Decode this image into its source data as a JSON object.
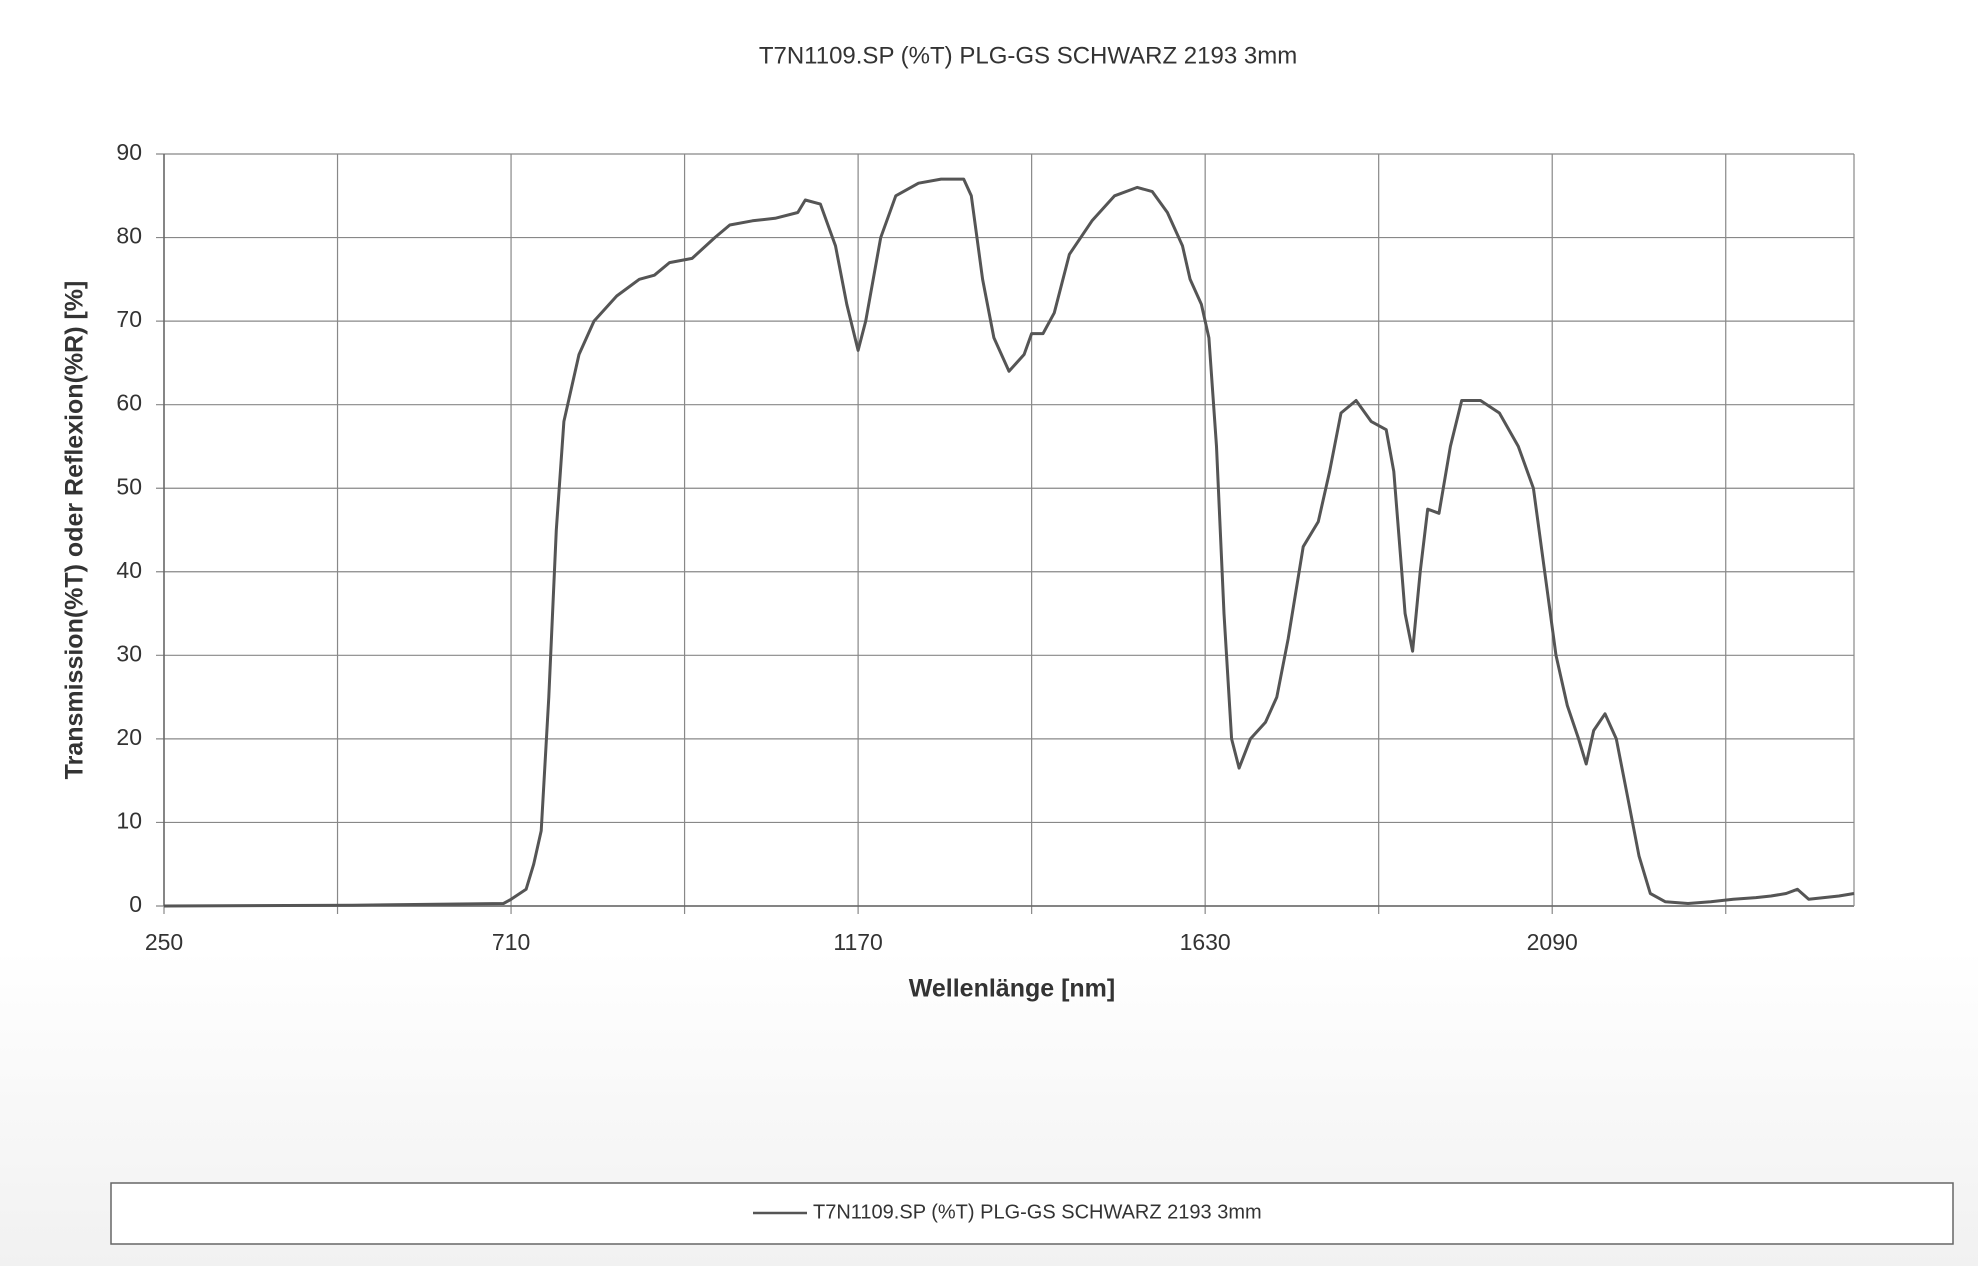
{
  "chart_data": {
    "type": "line",
    "title": "T7N1109.SP (%T) PLG-GS SCHWARZ 2193  3mm",
    "x_label": "Wellenlänge [nm]",
    "y_label": "Transmission(%T)  oder  Reflexion(%R) [%]",
    "xlim": [
      250,
      2490
    ],
    "xticks": [
      250,
      710,
      1170,
      1630,
      2090
    ],
    "xgrid": [
      480,
      940,
      1400,
      1860,
      2320
    ],
    "ylim": [
      0,
      90
    ],
    "yticks": [
      0,
      10,
      20,
      30,
      40,
      50,
      60,
      70,
      80,
      90
    ],
    "grid": true,
    "legend": "bottom",
    "x": [
      250,
      500,
      700,
      710,
      730,
      740,
      750,
      760,
      770,
      780,
      800,
      820,
      850,
      880,
      900,
      920,
      950,
      980,
      1000,
      1030,
      1060,
      1090,
      1100,
      1120,
      1140,
      1155,
      1170,
      1180,
      1200,
      1220,
      1250,
      1280,
      1310,
      1320,
      1335,
      1350,
      1370,
      1390,
      1400,
      1415,
      1430,
      1450,
      1480,
      1510,
      1540,
      1560,
      1580,
      1600,
      1610,
      1625,
      1635,
      1645,
      1655,
      1665,
      1675,
      1690,
      1710,
      1725,
      1740,
      1760,
      1780,
      1795,
      1810,
      1830,
      1850,
      1870,
      1880,
      1895,
      1905,
      1915,
      1925,
      1940,
      1955,
      1970,
      1995,
      2020,
      2045,
      2065,
      2080,
      2095,
      2110,
      2125,
      2135,
      2145,
      2160,
      2175,
      2190,
      2205,
      2220,
      2240,
      2270,
      2300,
      2330,
      2360,
      2380,
      2400,
      2415,
      2430,
      2450,
      2470,
      2490
    ],
    "series": [
      {
        "name": "T7N1109.SP (%T) PLG-GS SCHWARZ 2193  3mm",
        "color": "#555555",
        "values": [
          0,
          0.1,
          0.3,
          0.8,
          2,
          5,
          9,
          25,
          45,
          58,
          66,
          70,
          73,
          75,
          75.5,
          77,
          77.5,
          80,
          81.5,
          82,
          82.3,
          83,
          84.5,
          84,
          79,
          72,
          66.5,
          70,
          80,
          85,
          86.5,
          87,
          87,
          85,
          75,
          68,
          64,
          66,
          68.5,
          68.5,
          71,
          78,
          82,
          85,
          86,
          85.5,
          83,
          79,
          75,
          72,
          68,
          55,
          35,
          20,
          16.5,
          20,
          22,
          25,
          32,
          43,
          46,
          52,
          59,
          60.5,
          58,
          57,
          52,
          35,
          30.5,
          40,
          47.5,
          47,
          55,
          60.5,
          60.5,
          59,
          55,
          50,
          40,
          30,
          24,
          20,
          17,
          21,
          23,
          20,
          13,
          6,
          1.5,
          0.5,
          0.3,
          0.5,
          0.8,
          1,
          1.2,
          1.5,
          2,
          0.8,
          1,
          1.2,
          1.5
        ]
      }
    ]
  }
}
